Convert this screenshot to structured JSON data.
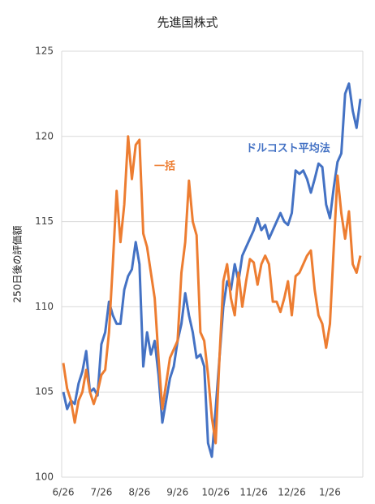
{
  "chart_data": {
    "type": "line",
    "title": "先進国株式",
    "ylabel": "250日後の評価額",
    "categories": [
      "6/26",
      null,
      null,
      null,
      null,
      null,
      null,
      null,
      null,
      null,
      "7/26",
      null,
      null,
      null,
      null,
      null,
      null,
      null,
      null,
      null,
      "8/26",
      null,
      null,
      null,
      null,
      null,
      null,
      null,
      null,
      null,
      "9/26",
      null,
      null,
      null,
      null,
      null,
      null,
      null,
      null,
      null,
      "10/26",
      null,
      null,
      null,
      null,
      null,
      null,
      null,
      null,
      null,
      "11/26",
      null,
      null,
      null,
      null,
      null,
      null,
      null,
      null,
      null,
      "12/26",
      null,
      null,
      null,
      null,
      null,
      null,
      null,
      null,
      null,
      "1/26",
      null,
      null,
      null,
      null,
      null,
      null,
      null,
      null
    ],
    "series": [
      {
        "name": "ドルコスト平均法",
        "color": "#4472c4",
        "values": [
          105,
          104,
          104.5,
          104.3,
          105.5,
          106.2,
          107.4,
          105,
          105.2,
          104.8,
          107.8,
          108.5,
          110.3,
          109.5,
          109,
          109,
          111,
          111.8,
          112.2,
          113.8,
          112.5,
          106.5,
          108.5,
          107.2,
          108,
          106,
          103.2,
          104.5,
          105.8,
          106.5,
          108,
          109,
          110.8,
          109.5,
          108.5,
          107,
          107.2,
          106.5,
          102,
          101.2,
          104,
          107,
          110,
          111.5,
          111,
          112.5,
          111.5,
          113,
          113.5,
          114,
          114.5,
          115.2,
          114.5,
          114.8,
          114,
          114.5,
          115,
          115.5,
          115,
          114.8,
          115.5,
          118,
          117.8,
          118,
          117.5,
          116.7,
          117.5,
          118.4,
          118.2,
          116,
          115.2,
          117,
          118.5,
          119,
          122.5,
          123.1,
          121.5,
          120.5,
          122.2
        ]
      },
      {
        "name": "一括",
        "color": "#ed7d31",
        "values": [
          106.7,
          105.2,
          104.5,
          103.2,
          104.5,
          105,
          106.3,
          105,
          104.3,
          105,
          106,
          106.3,
          108.5,
          112.5,
          116.8,
          113.8,
          116,
          120,
          117.5,
          119.5,
          119.8,
          114.3,
          113.5,
          112,
          110.5,
          107,
          104,
          105.5,
          107,
          107.5,
          108,
          112,
          113.8,
          117.4,
          115,
          114.2,
          108.5,
          108,
          106,
          103.5,
          102,
          107,
          111.5,
          112.5,
          110.5,
          109.5,
          112,
          110,
          111.5,
          112.8,
          112.6,
          111.3,
          112.5,
          113,
          112.5,
          110.3,
          110.3,
          109.7,
          110.5,
          111.5,
          109.5,
          111.8,
          112,
          112.5,
          113,
          113.3,
          111,
          109.5,
          109,
          107.6,
          109,
          113.5,
          117.7,
          115.5,
          114,
          115.6,
          112.5,
          112,
          113
        ]
      }
    ],
    "ylim": [
      100,
      125
    ],
    "yticks": [
      100,
      105,
      110,
      115,
      120,
      125
    ],
    "grid": true
  }
}
